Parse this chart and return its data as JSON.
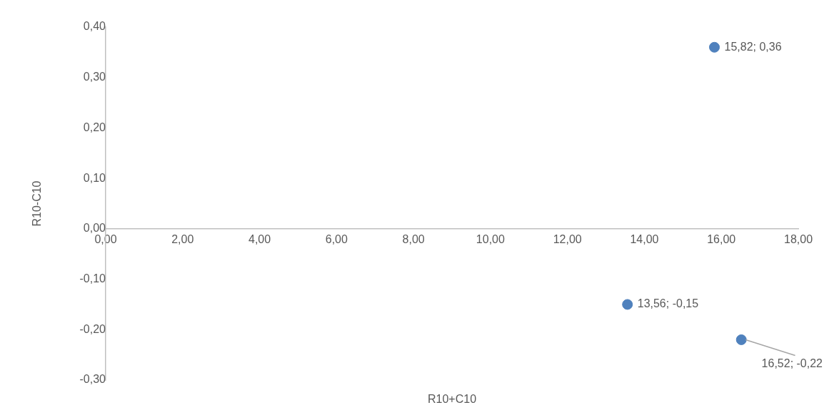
{
  "chart_data": {
    "type": "scatter",
    "xlabel": "R10+C10",
    "ylabel": "R10-C10",
    "series": [
      {
        "color": "#4f81bd",
        "x": [
          15.82,
          13.56,
          16.52
        ],
        "values": [
          0.36,
          -0.15,
          -0.22
        ],
        "value_labels": [
          "15,82; 0,36",
          "13,56; -0,15",
          "16,52; -0,22"
        ]
      }
    ],
    "xlim": [
      0,
      18
    ],
    "xticks": [
      {
        "value": 0,
        "label": "0,00"
      },
      {
        "value": 2,
        "label": "2,00"
      },
      {
        "value": 4,
        "label": "4,00"
      },
      {
        "value": 6,
        "label": "6,00"
      },
      {
        "value": 8,
        "label": "8,00"
      },
      {
        "value": 10,
        "label": "10,00"
      },
      {
        "value": 12,
        "label": "12,00"
      },
      {
        "value": 14,
        "label": "14,00"
      },
      {
        "value": 16,
        "label": "16,00"
      },
      {
        "value": 18,
        "label": "18,00"
      }
    ],
    "ylim": [
      -0.3,
      0.4
    ],
    "yticks": [
      {
        "value": -0.3,
        "label": "-0,30"
      },
      {
        "value": -0.2,
        "label": "-0,20"
      },
      {
        "value": -0.1,
        "label": "-0,10"
      },
      {
        "value": 0,
        "label": "0,00"
      },
      {
        "value": 0.1,
        "label": "0,10"
      },
      {
        "value": 0.2,
        "label": "0,20"
      },
      {
        "value": 0.3,
        "label": "0,30"
      },
      {
        "value": 0.4,
        "label": "0,40"
      }
    ],
    "grid": false,
    "legend": false,
    "marker": "circle"
  }
}
